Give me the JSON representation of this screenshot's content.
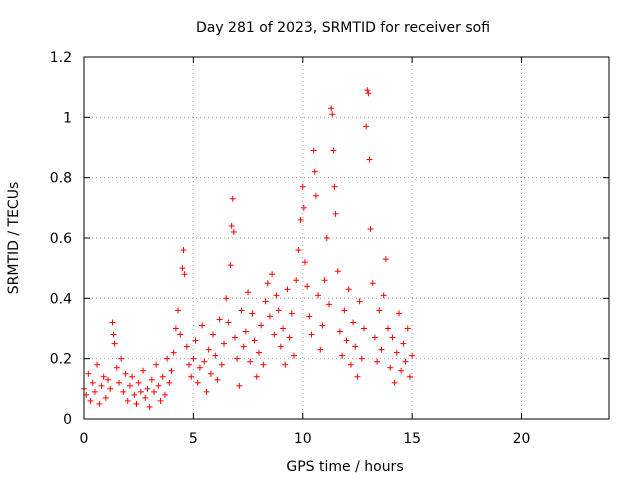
{
  "chart_data": {
    "type": "scatter",
    "title": "Day 281 of 2023, SRMTID for receiver sofi",
    "xlabel": "GPS time / hours",
    "ylabel": "SRMTID / TECUs",
    "xlim": [
      0,
      24
    ],
    "ylim": [
      0,
      1.2
    ],
    "xticks": [
      0,
      5,
      10,
      15,
      20
    ],
    "xtick_labels": [
      "0",
      "5",
      "10",
      "15",
      "20"
    ],
    "yticks": [
      0,
      0.2,
      0.4,
      0.6,
      0.8,
      1.0,
      1.2
    ],
    "ytick_labels": [
      "0",
      "0.2",
      "0.4",
      "0.6",
      "0.8",
      "1",
      "1.2"
    ],
    "grid": true,
    "marker": "+",
    "color": "#ff0000",
    "series": [
      {
        "name": "sofi",
        "points": [
          [
            0.0,
            0.1
          ],
          [
            0.1,
            0.08
          ],
          [
            0.2,
            0.15
          ],
          [
            0.3,
            0.06
          ],
          [
            0.4,
            0.12
          ],
          [
            0.5,
            0.09
          ],
          [
            0.6,
            0.18
          ],
          [
            0.7,
            0.05
          ],
          [
            0.8,
            0.11
          ],
          [
            0.9,
            0.14
          ],
          [
            1.0,
            0.07
          ],
          [
            1.1,
            0.13
          ],
          [
            1.2,
            0.1
          ],
          [
            1.3,
            0.32
          ],
          [
            1.35,
            0.28
          ],
          [
            1.4,
            0.25
          ],
          [
            1.5,
            0.17
          ],
          [
            1.6,
            0.12
          ],
          [
            1.7,
            0.2
          ],
          [
            1.8,
            0.09
          ],
          [
            1.9,
            0.15
          ],
          [
            2.0,
            0.06
          ],
          [
            2.1,
            0.11
          ],
          [
            2.2,
            0.14
          ],
          [
            2.3,
            0.08
          ],
          [
            2.4,
            0.05
          ],
          [
            2.5,
            0.12
          ],
          [
            2.6,
            0.09
          ],
          [
            2.7,
            0.16
          ],
          [
            2.8,
            0.07
          ],
          [
            2.9,
            0.1
          ],
          [
            3.0,
            0.04
          ],
          [
            3.1,
            0.13
          ],
          [
            3.2,
            0.09
          ],
          [
            3.3,
            0.18
          ],
          [
            3.4,
            0.11
          ],
          [
            3.5,
            0.06
          ],
          [
            3.6,
            0.14
          ],
          [
            3.7,
            0.08
          ],
          [
            3.8,
            0.2
          ],
          [
            3.9,
            0.12
          ],
          [
            4.0,
            0.16
          ],
          [
            4.1,
            0.22
          ],
          [
            4.2,
            0.3
          ],
          [
            4.3,
            0.36
          ],
          [
            4.4,
            0.28
          ],
          [
            4.5,
            0.5
          ],
          [
            4.55,
            0.56
          ],
          [
            4.6,
            0.48
          ],
          [
            4.7,
            0.24
          ],
          [
            4.8,
            0.18
          ],
          [
            4.9,
            0.14
          ],
          [
            5.0,
            0.2
          ],
          [
            5.1,
            0.26
          ],
          [
            5.2,
            0.12
          ],
          [
            5.3,
            0.17
          ],
          [
            5.4,
            0.31
          ],
          [
            5.5,
            0.19
          ],
          [
            5.6,
            0.09
          ],
          [
            5.7,
            0.23
          ],
          [
            5.8,
            0.15
          ],
          [
            5.9,
            0.28
          ],
          [
            6.0,
            0.21
          ],
          [
            6.1,
            0.13
          ],
          [
            6.2,
            0.33
          ],
          [
            6.3,
            0.18
          ],
          [
            6.4,
            0.25
          ],
          [
            6.5,
            0.4
          ],
          [
            6.6,
            0.32
          ],
          [
            6.7,
            0.51
          ],
          [
            6.75,
            0.64
          ],
          [
            6.8,
            0.73
          ],
          [
            6.85,
            0.62
          ],
          [
            6.9,
            0.27
          ],
          [
            7.0,
            0.2
          ],
          [
            7.1,
            0.11
          ],
          [
            7.2,
            0.36
          ],
          [
            7.3,
            0.24
          ],
          [
            7.4,
            0.29
          ],
          [
            7.5,
            0.42
          ],
          [
            7.6,
            0.19
          ],
          [
            7.7,
            0.35
          ],
          [
            7.8,
            0.26
          ],
          [
            7.9,
            0.14
          ],
          [
            8.0,
            0.22
          ],
          [
            8.1,
            0.31
          ],
          [
            8.2,
            0.18
          ],
          [
            8.3,
            0.39
          ],
          [
            8.4,
            0.45
          ],
          [
            8.5,
            0.34
          ],
          [
            8.6,
            0.48
          ],
          [
            8.7,
            0.28
          ],
          [
            8.8,
            0.41
          ],
          [
            8.9,
            0.36
          ],
          [
            9.0,
            0.24
          ],
          [
            9.1,
            0.3
          ],
          [
            9.2,
            0.18
          ],
          [
            9.3,
            0.43
          ],
          [
            9.4,
            0.27
          ],
          [
            9.5,
            0.35
          ],
          [
            9.6,
            0.21
          ],
          [
            9.7,
            0.46
          ],
          [
            9.8,
            0.56
          ],
          [
            9.9,
            0.66
          ],
          [
            10.0,
            0.77
          ],
          [
            10.05,
            0.7
          ],
          [
            10.1,
            0.52
          ],
          [
            10.2,
            0.44
          ],
          [
            10.3,
            0.34
          ],
          [
            10.4,
            0.28
          ],
          [
            10.5,
            0.89
          ],
          [
            10.55,
            0.82
          ],
          [
            10.6,
            0.74
          ],
          [
            10.7,
            0.41
          ],
          [
            10.8,
            0.23
          ],
          [
            10.9,
            0.31
          ],
          [
            11.0,
            0.46
          ],
          [
            11.1,
            0.6
          ],
          [
            11.2,
            0.38
          ],
          [
            11.3,
            1.03
          ],
          [
            11.35,
            1.01
          ],
          [
            11.4,
            0.89
          ],
          [
            11.45,
            0.77
          ],
          [
            11.5,
            0.68
          ],
          [
            11.6,
            0.49
          ],
          [
            11.7,
            0.29
          ],
          [
            11.8,
            0.21
          ],
          [
            11.9,
            0.36
          ],
          [
            12.0,
            0.26
          ],
          [
            12.1,
            0.43
          ],
          [
            12.2,
            0.18
          ],
          [
            12.3,
            0.32
          ],
          [
            12.4,
            0.24
          ],
          [
            12.5,
            0.14
          ],
          [
            12.6,
            0.39
          ],
          [
            12.7,
            0.2
          ],
          [
            12.8,
            0.3
          ],
          [
            12.9,
            0.97
          ],
          [
            12.95,
            1.09
          ],
          [
            13.0,
            1.08
          ],
          [
            13.05,
            0.86
          ],
          [
            13.1,
            0.63
          ],
          [
            13.2,
            0.45
          ],
          [
            13.3,
            0.27
          ],
          [
            13.4,
            0.19
          ],
          [
            13.5,
            0.36
          ],
          [
            13.6,
            0.23
          ],
          [
            13.7,
            0.41
          ],
          [
            13.8,
            0.53
          ],
          [
            13.9,
            0.3
          ],
          [
            14.0,
            0.17
          ],
          [
            14.1,
            0.27
          ],
          [
            14.2,
            0.12
          ],
          [
            14.3,
            0.22
          ],
          [
            14.4,
            0.35
          ],
          [
            14.5,
            0.16
          ],
          [
            14.6,
            0.25
          ],
          [
            14.7,
            0.19
          ],
          [
            14.8,
            0.3
          ],
          [
            14.9,
            0.14
          ],
          [
            15.0,
            0.21
          ]
        ]
      }
    ]
  }
}
